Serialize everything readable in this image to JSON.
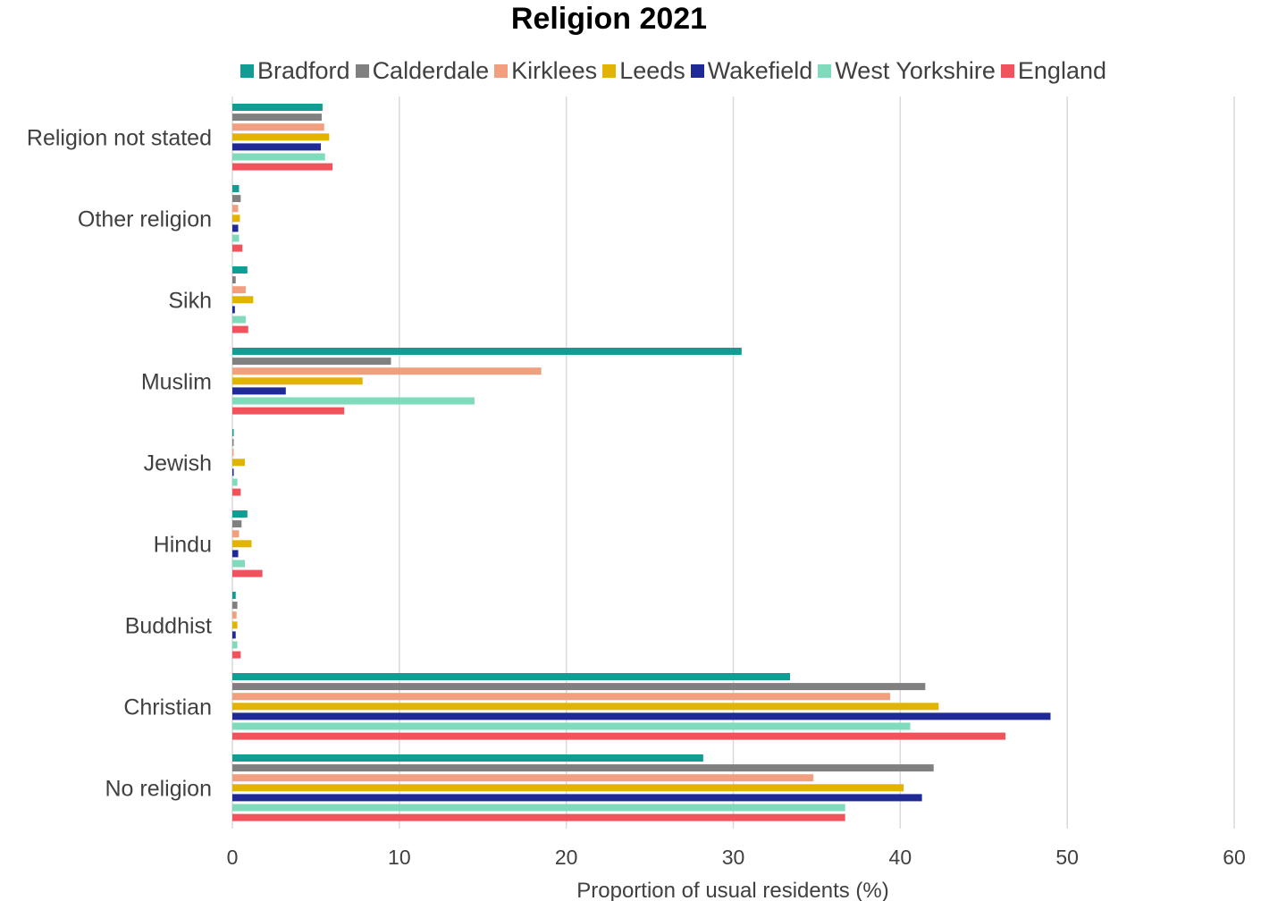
{
  "chart_data": {
    "type": "bar",
    "orientation": "horizontal",
    "title": "Religion 2021",
    "xlabel": "Proportion of usual residents (%)",
    "ylabel": "",
    "xlim": [
      0,
      60
    ],
    "xticks": [
      0,
      10,
      20,
      30,
      40,
      50,
      60
    ],
    "grid": "vertical",
    "legend_position": "top",
    "categories": [
      "Religion not stated",
      "Other religion",
      "Sikh",
      "Muslim",
      "Jewish",
      "Hindu",
      "Buddhist",
      "Christian",
      "No religion"
    ],
    "series": [
      {
        "name": "Bradford",
        "color": "#119c94",
        "values": [
          5.4,
          0.4,
          0.9,
          30.5,
          0.05,
          0.9,
          0.2,
          33.4,
          28.2
        ]
      },
      {
        "name": "Calderdale",
        "color": "#808080",
        "values": [
          5.35,
          0.5,
          0.2,
          9.5,
          0.05,
          0.55,
          0.3,
          41.5,
          42.0
        ]
      },
      {
        "name": "Kirklees",
        "color": "#f29f80",
        "values": [
          5.5,
          0.35,
          0.8,
          18.5,
          0.05,
          0.4,
          0.25,
          39.4,
          34.8
        ]
      },
      {
        "name": "Leeds",
        "color": "#e0b400",
        "values": [
          5.8,
          0.45,
          1.25,
          7.8,
          0.75,
          1.15,
          0.3,
          42.3,
          40.2
        ]
      },
      {
        "name": "Wakefield",
        "color": "#1f2a97",
        "values": [
          5.3,
          0.35,
          0.15,
          3.2,
          0.05,
          0.35,
          0.2,
          49.0,
          41.3
        ]
      },
      {
        "name": "West Yorkshire",
        "color": "#7fdbbb",
        "values": [
          5.55,
          0.4,
          0.8,
          14.5,
          0.3,
          0.75,
          0.3,
          40.6,
          36.7
        ]
      },
      {
        "name": "England",
        "color": "#f2525c",
        "values": [
          6.0,
          0.6,
          0.95,
          6.7,
          0.5,
          1.8,
          0.5,
          46.3,
          36.7
        ]
      }
    ]
  }
}
